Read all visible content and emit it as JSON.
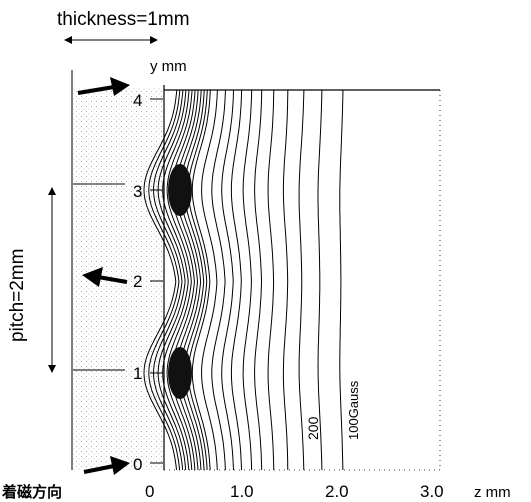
{
  "labels": {
    "thickness": "thickness=1mm",
    "pitch": "pitch=2mm",
    "y_axis": "y mm",
    "z_axis": "z mm",
    "magnetization_direction": "着磁方向",
    "contour_200": "200",
    "contour_100": "100Gauss"
  },
  "y_ticks": [
    "0",
    "1",
    "2",
    "3",
    "4"
  ],
  "z_ticks": [
    "0",
    "1.0",
    "2.0",
    "3.0"
  ],
  "magnet_arrows": [
    {
      "y": 4,
      "direction": "right"
    },
    {
      "y": 2,
      "direction": "left"
    },
    {
      "y": 0,
      "direction": "right"
    }
  ],
  "axis_ranges": {
    "z_mm": [
      0,
      3.0
    ],
    "y_mm": [
      0,
      4
    ]
  }
}
